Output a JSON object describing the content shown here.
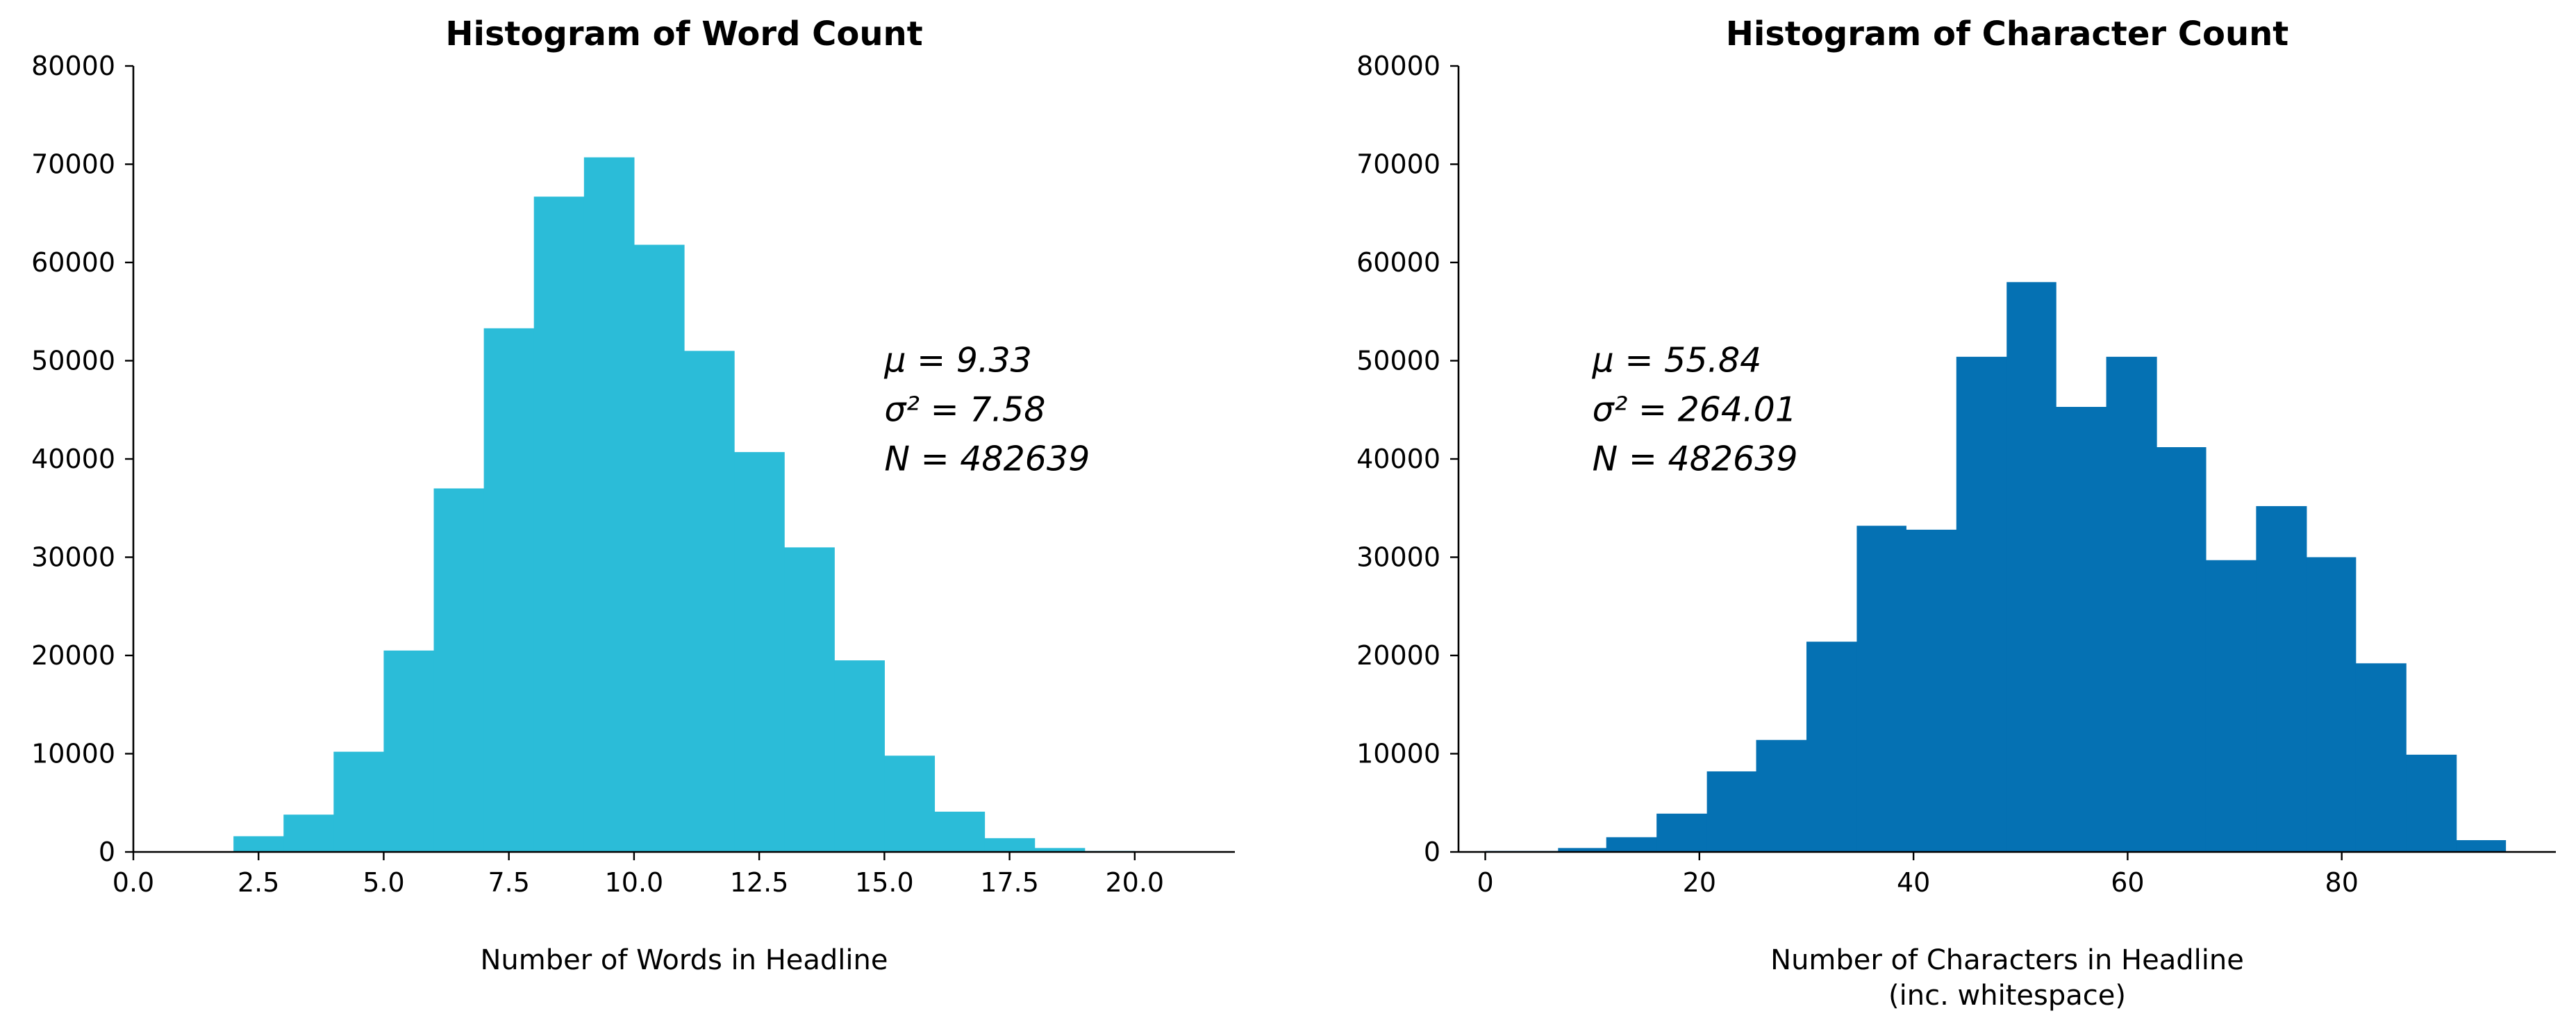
{
  "chart_data": [
    {
      "type": "bar",
      "title": "Histogram of Word Count",
      "xlabel": "Number of Words in Headline",
      "xlabel_line2": "",
      "ylabel": "",
      "xlim": [
        0,
        22
      ],
      "ylim": [
        0,
        80000
      ],
      "xticks": [
        0,
        2.5,
        5,
        7.5,
        10,
        12.5,
        15,
        17.5,
        20
      ],
      "xtick_labels": [
        "0.0",
        "2.5",
        "5.0",
        "7.5",
        "10.0",
        "12.5",
        "15.0",
        "17.5",
        "20.0"
      ],
      "yticks": [
        0,
        10000,
        20000,
        30000,
        40000,
        50000,
        60000,
        70000,
        80000
      ],
      "ytick_labels": [
        "0",
        "10000",
        "20000",
        "30000",
        "40000",
        "50000",
        "60000",
        "70000",
        "80000"
      ],
      "bin_edges": [
        2,
        3,
        4,
        5,
        6,
        7,
        8,
        9,
        10,
        11,
        12,
        13,
        14,
        15,
        16,
        17,
        18,
        19,
        20
      ],
      "values": [
        1600,
        3800,
        10200,
        20500,
        37000,
        53300,
        66700,
        70700,
        61800,
        51000,
        40700,
        31000,
        19500,
        9800,
        4100,
        1400,
        400,
        100
      ],
      "color": "#2bbcd8",
      "stats": {
        "mean": "μ = 9.33",
        "variance": "σ² = 7.58",
        "n": "N = 482639"
      },
      "stats_anchor": [
        15,
        50000
      ],
      "grid": false,
      "legend": "none"
    },
    {
      "type": "bar",
      "title": "Histogram of Character Count",
      "xlabel": "Number of Characters in Headline",
      "xlabel_line2": "(inc. whitespace)",
      "ylabel": "",
      "xlim": [
        -2.5,
        100
      ],
      "ylim": [
        0,
        80000
      ],
      "xticks": [
        0,
        20,
        40,
        60,
        80
      ],
      "xtick_labels": [
        "0",
        "20",
        "40",
        "60",
        "80"
      ],
      "yticks": [
        0,
        10000,
        20000,
        30000,
        40000,
        50000,
        60000,
        70000,
        80000
      ],
      "ytick_labels": [
        "0",
        "10000",
        "20000",
        "30000",
        "40000",
        "50000",
        "60000",
        "70000",
        "80000"
      ],
      "bin_edges": [
        0,
        6.8,
        11.3,
        16,
        20.7,
        25.3,
        30,
        34.7,
        39.3,
        44,
        48.7,
        53.3,
        58,
        62.7,
        67.3,
        72,
        76.7,
        81.3,
        86,
        90.7,
        95.3
      ],
      "values": [
        100,
        400,
        1500,
        3900,
        8200,
        11400,
        21400,
        33200,
        32800,
        50400,
        58000,
        45300,
        50400,
        41200,
        29700,
        35200,
        30000,
        19200,
        9900,
        1200
      ],
      "color": "#0571b3",
      "stats": {
        "mean": "μ = 55.84",
        "variance": "σ² = 264.01",
        "n": "N = 482639"
      },
      "stats_anchor": [
        10,
        50000
      ],
      "grid": false,
      "legend": "none"
    }
  ]
}
